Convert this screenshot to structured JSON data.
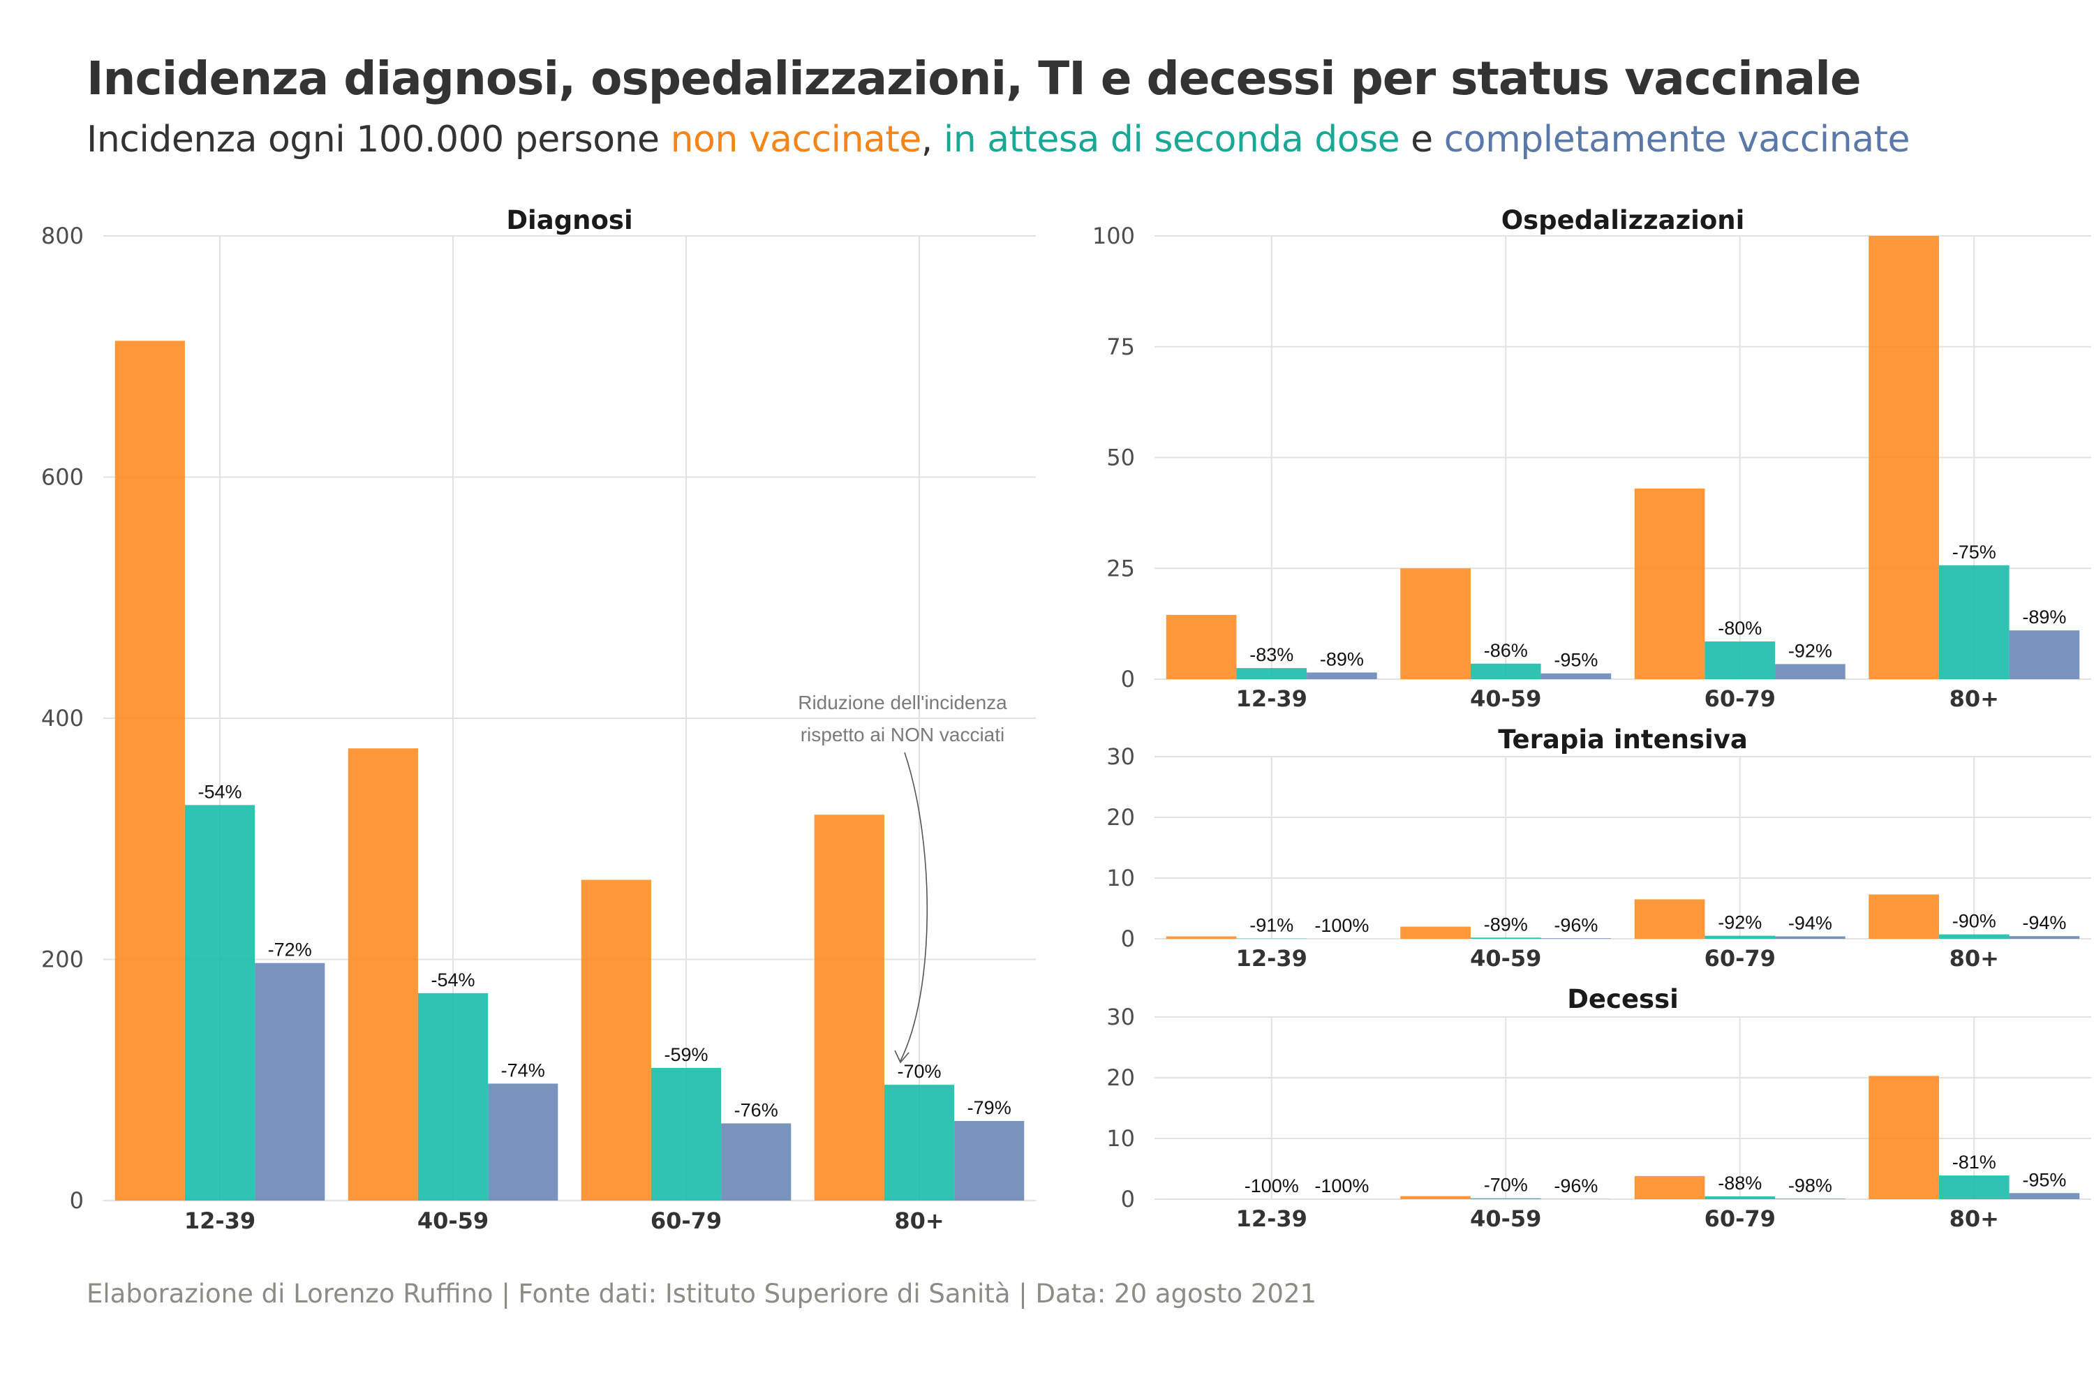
{
  "header": {
    "title": "Incidenza diagnosi, ospedalizzazioni, TI e decessi per status vaccinale",
    "subtitle_prefix": "Incidenza ogni 100.000 persone ",
    "subtitle_nonvax": "non vaccinate",
    "subtitle_sep1": ", ",
    "subtitle_partial": "in attesa di seconda dose",
    "subtitle_sep2": " e ",
    "subtitle_full": "completamente vaccinate"
  },
  "caption": "Elaborazione di Lorenzo Ruffino | Fonte dati: Istituto Superiore di Sanità | Data: 20 agosto 2021",
  "colors": {
    "nonvax": "#fc8d24",
    "partial": "#1abca8",
    "full": "#6a87b8",
    "subtitle_nonvax": "#f58518",
    "subtitle_partial": "#1aa896",
    "subtitle_full": "#5a78a8",
    "annotation": "#7a7a7a"
  },
  "chart_data": [
    {
      "type": "bar",
      "title": "Diagnosi",
      "categories": [
        "12-39",
        "40-59",
        "60-79",
        "80+"
      ],
      "ylim": [
        0,
        800
      ],
      "yticks": [
        0,
        200,
        400,
        600,
        800
      ],
      "series": [
        {
          "name": "non vaccinate",
          "values": [
            713,
            375,
            266,
            320
          ]
        },
        {
          "name": "in attesa di seconda dose",
          "values": [
            328,
            172,
            110,
            96
          ]
        },
        {
          "name": "completamente vaccinate",
          "values": [
            197,
            97,
            64,
            66
          ]
        }
      ],
      "labels": [
        [
          "-54%",
          "-72%"
        ],
        [
          "-54%",
          "-74%"
        ],
        [
          "-59%",
          "-76%"
        ],
        [
          "-70%",
          "-79%"
        ]
      ],
      "annotation": {
        "line1": "Riduzione dell'incidenza",
        "line2": "rispetto ai NON vacciati"
      }
    },
    {
      "type": "bar",
      "title": "Ospedalizzazioni",
      "categories": [
        "12-39",
        "40-59",
        "60-79",
        "80+"
      ],
      "ylim": [
        0,
        100
      ],
      "yticks": [
        0,
        25,
        50,
        75,
        100
      ],
      "series": [
        {
          "name": "non vaccinate",
          "values": [
            14.5,
            25,
            43,
            100
          ]
        },
        {
          "name": "in attesa di seconda dose",
          "values": [
            2.5,
            3.5,
            8.5,
            25.7
          ]
        },
        {
          "name": "completamente vaccinate",
          "values": [
            1.5,
            1.3,
            3.4,
            11
          ]
        }
      ],
      "labels": [
        [
          "-83%",
          "-89%"
        ],
        [
          "-86%",
          "-95%"
        ],
        [
          "-80%",
          "-92%"
        ],
        [
          "-75%",
          "-89%"
        ]
      ]
    },
    {
      "type": "bar",
      "title": "Terapia intensiva",
      "categories": [
        "12-39",
        "40-59",
        "60-79",
        "80+"
      ],
      "ylim": [
        0,
        30
      ],
      "yticks": [
        0,
        10,
        20,
        30
      ],
      "series": [
        {
          "name": "non vaccinate",
          "values": [
            0.4,
            2.0,
            6.5,
            7.3
          ]
        },
        {
          "name": "in attesa di seconda dose",
          "values": [
            0.04,
            0.2,
            0.5,
            0.73
          ]
        },
        {
          "name": "completamente vaccinate",
          "values": [
            0,
            0.08,
            0.4,
            0.44
          ]
        }
      ],
      "labels": [
        [
          "-91%",
          "-100%"
        ],
        [
          "-89%",
          "-96%"
        ],
        [
          "-92%",
          "-94%"
        ],
        [
          "-90%",
          "-94%"
        ]
      ]
    },
    {
      "type": "bar",
      "title": "Decessi",
      "categories": [
        "12-39",
        "40-59",
        "60-79",
        "80+"
      ],
      "ylim": [
        0,
        30
      ],
      "yticks": [
        0,
        10,
        20,
        30
      ],
      "series": [
        {
          "name": "non vaccinate",
          "values": [
            0.01,
            0.5,
            3.8,
            20.3
          ]
        },
        {
          "name": "in attesa di seconda dose",
          "values": [
            0,
            0.15,
            0.46,
            3.9
          ]
        },
        {
          "name": "completamente vaccinate",
          "values": [
            0,
            0.02,
            0.08,
            1.0
          ]
        }
      ],
      "labels": [
        [
          "-100%",
          "-100%"
        ],
        [
          "-70%",
          "-96%"
        ],
        [
          "-88%",
          "-98%"
        ],
        [
          "-81%",
          "-95%"
        ]
      ]
    }
  ]
}
